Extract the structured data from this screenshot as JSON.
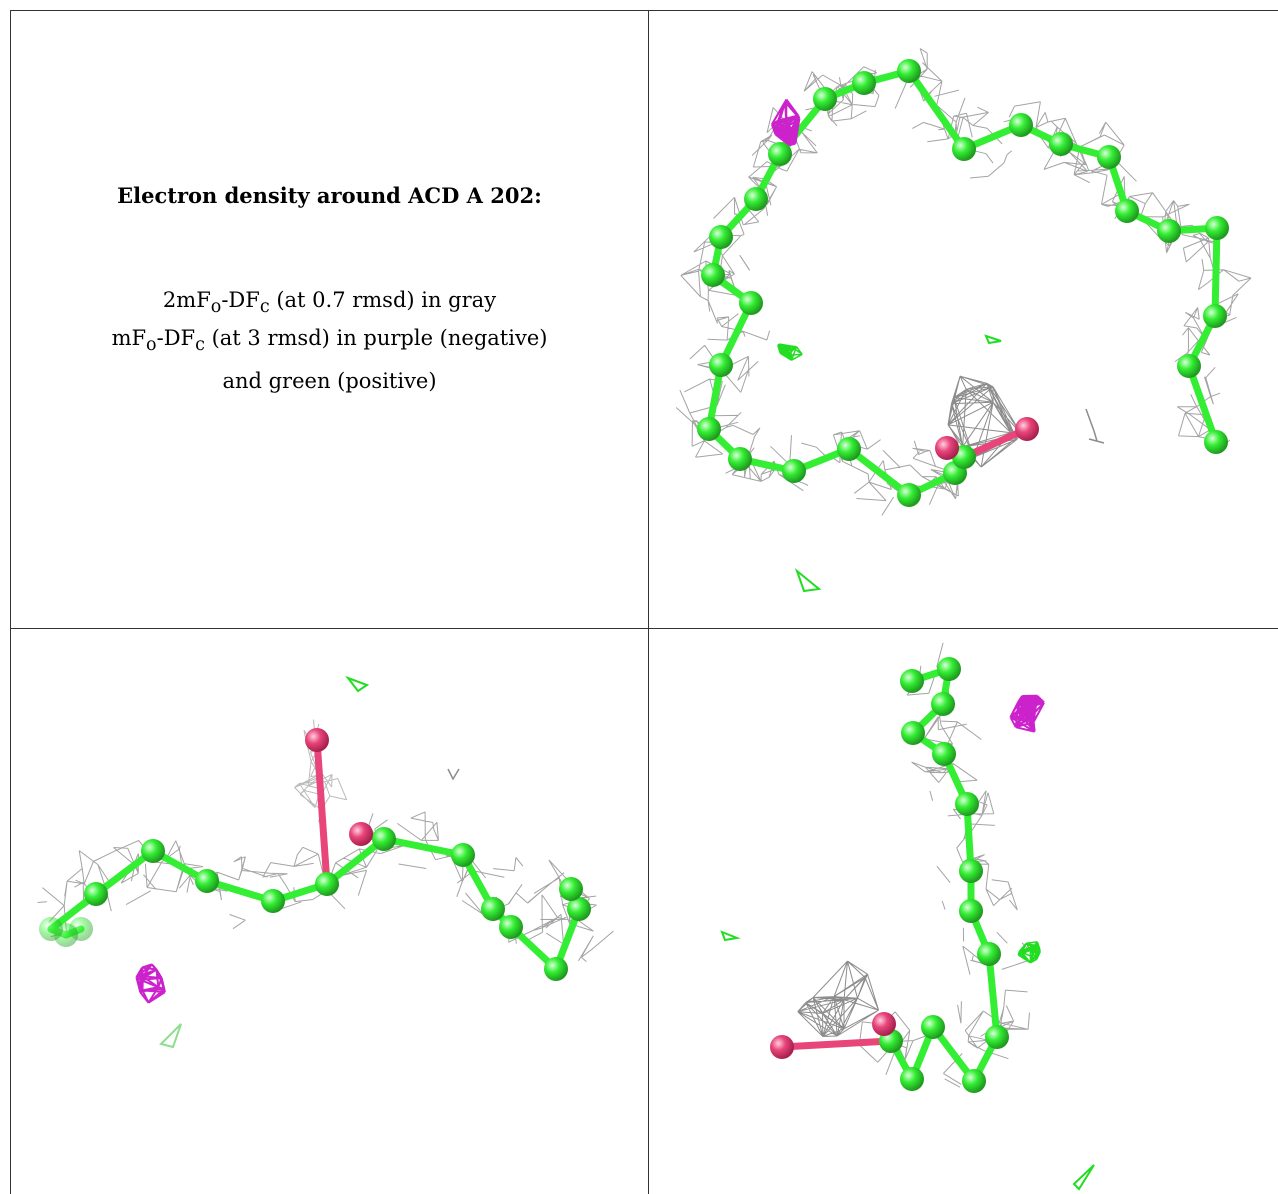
{
  "caption": {
    "title": "Electron density around ACD A 202:",
    "lines": [
      {
        "pre": "2mF",
        "sub1": "o",
        "mid": "-DF",
        "sub2": "c",
        "post": " (at 0.7 rmsd) in gray"
      },
      {
        "pre": "mF",
        "sub1": "o",
        "mid": "-DF",
        "sub2": "c",
        "post": " (at 3 rmsd) in purple (negative)"
      },
      {
        "pre": "",
        "sub1": "",
        "mid": "",
        "sub2": "",
        "post": "and green (positive)"
      }
    ]
  },
  "colors": {
    "mesh_2fofc": "#8c8c8c",
    "mesh_fofc_negative": "#cc22cc",
    "mesh_fofc_positive": "#22dd22",
    "carbon": "#33ee33",
    "oxygen": "#e8457a"
  },
  "views": [
    {
      "name": "view-top-right",
      "ligand": "ACD A 202",
      "atoms": "carbon chain with carboxylate oxygens"
    },
    {
      "name": "view-bottom-left",
      "ligand": "ACD A 202",
      "atoms": "carbon chain with carboxylate oxygens"
    },
    {
      "name": "view-bottom-right",
      "ligand": "ACD A 202",
      "atoms": "carbon chain with carboxylate oxygens"
    }
  ]
}
